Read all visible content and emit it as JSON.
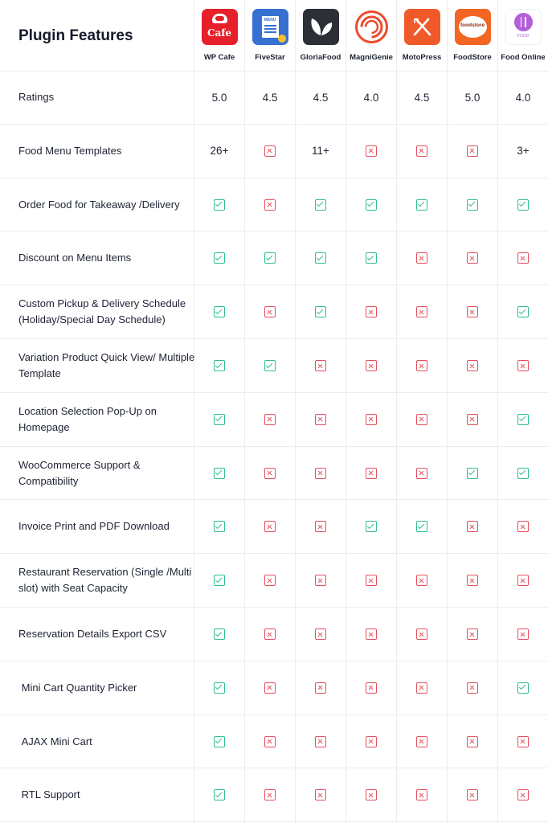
{
  "header": {
    "title": "Plugin Features"
  },
  "plugins": [
    {
      "name": "WP Cafe",
      "icon": "wpcafe-logo-icon",
      "color": "#e5202a",
      "logo_text": "Cafe"
    },
    {
      "name": "FiveStar",
      "icon": "fivestar-logo-icon",
      "color": "#3671d1",
      "logo_text": "MENU"
    },
    {
      "name": "GloriaFood",
      "icon": "gloriafood-logo-icon",
      "color": "#2c2f36"
    },
    {
      "name": "MagniGenie",
      "icon": "magnigenie-logo-icon",
      "color": "#ea4c2e"
    },
    {
      "name": "MotoPress",
      "icon": "motopress-logo-icon",
      "color": "#f05a2a"
    },
    {
      "name": "FoodStore",
      "icon": "foodstore-logo-icon",
      "color": "#f26522",
      "logo_text": "foodstore"
    },
    {
      "name": "Food Online",
      "icon": "foodonline-logo-icon",
      "color": "#b35fd6",
      "logo_text": "FOOD"
    }
  ],
  "rows": [
    {
      "feature": "Ratings",
      "values": [
        "5.0",
        "4.5",
        "4.5",
        "4.0",
        "4.5",
        "5.0",
        "4.0"
      ]
    },
    {
      "feature": "Food Menu Templates",
      "values": [
        "26+",
        "no",
        "11+",
        "no",
        "no",
        "no",
        "3+"
      ]
    },
    {
      "feature": "Order Food for Takeaway /Delivery",
      "values": [
        "yes",
        "no",
        "yes",
        "yes",
        "yes",
        "yes",
        "yes"
      ]
    },
    {
      "feature": "Discount on Menu Items",
      "values": [
        "yes",
        "yes",
        "yes",
        "yes",
        "no",
        "no",
        "no"
      ]
    },
    {
      "feature": "Custom Pickup & Delivery Schedule (Holiday/Special Day Schedule)",
      "values": [
        "yes",
        "no",
        "yes",
        "no",
        "no",
        "no",
        "yes"
      ]
    },
    {
      "feature": "Variation Product Quick View/ Multiple Template",
      "values": [
        "yes",
        "yes",
        "no",
        "no",
        "no",
        "no",
        "no"
      ]
    },
    {
      "feature": "Location Selection Pop-Up on Homepage",
      "values": [
        "yes",
        "no",
        "no",
        "no",
        "no",
        "no",
        "yes"
      ]
    },
    {
      "feature": "WooCommerce Support & Compatibility",
      "values": [
        "yes",
        "no",
        "no",
        "no",
        "no",
        "yes",
        "yes"
      ]
    },
    {
      "feature": "Invoice Print and PDF Download",
      "values": [
        "yes",
        "no",
        "no",
        "yes",
        "yes",
        "no",
        "no"
      ]
    },
    {
      "feature": "Restaurant Reservation (Single /Multi slot) with Seat Capacity",
      "values": [
        "yes",
        "no",
        "no",
        "no",
        "no",
        "no",
        "no"
      ]
    },
    {
      "feature": "Reservation Details Export CSV",
      "values": [
        "yes",
        "no",
        "no",
        "no",
        "no",
        "no",
        "no"
      ]
    },
    {
      "feature": " Mini Cart Quantity Picker",
      "values": [
        "yes",
        "no",
        "no",
        "no",
        "no",
        "no",
        "yes"
      ]
    },
    {
      "feature": " AJAX Mini Cart",
      "values": [
        "yes",
        "no",
        "no",
        "no",
        "no",
        "no",
        "no"
      ]
    },
    {
      "feature": " RTL Support",
      "values": [
        "yes",
        "no",
        "no",
        "no",
        "no",
        "no",
        "no"
      ]
    }
  ],
  "icons": {
    "yes": "check-icon",
    "no": "cross-icon"
  },
  "colors": {
    "yes": "#2fbf89",
    "no": "#e54f5c",
    "grid": "#ececef"
  }
}
